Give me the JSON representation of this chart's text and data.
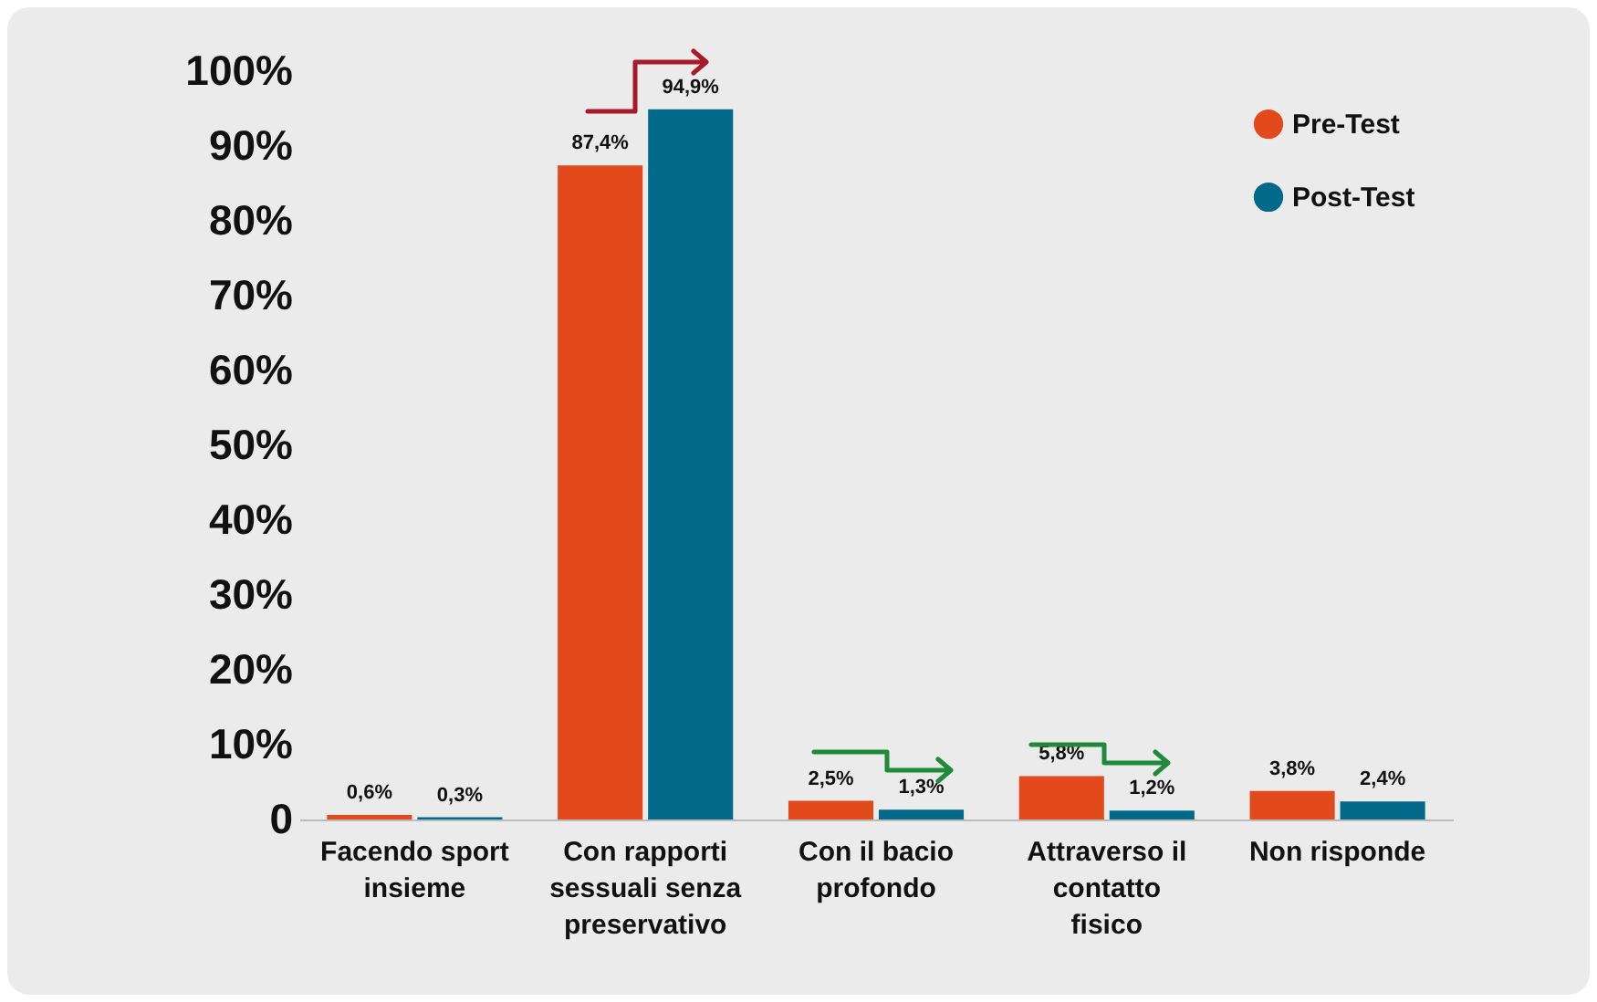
{
  "chart_data": {
    "type": "bar",
    "categories": [
      "Facendo sport insieme",
      "Con rapporti sessuali senza preservativo",
      "Con il bacio profondo",
      "Attraverso il contatto fisico",
      "Non risponde"
    ],
    "series": [
      {
        "name": "Pre-Test",
        "color": "#e2491b",
        "values": [
          0.6,
          87.4,
          2.5,
          5.8,
          3.8
        ],
        "value_labels": [
          "0,6%",
          "87,4%",
          "2,5%",
          "5,8%",
          "3,8%"
        ]
      },
      {
        "name": "Post-Test",
        "color": "#03698a",
        "values": [
          0.3,
          94.9,
          1.3,
          1.2,
          2.4
        ],
        "value_labels": [
          "0,3%",
          "94,9%",
          "1,3%",
          "1,2%",
          "2,4%"
        ]
      }
    ],
    "ylim": [
      0,
      100
    ],
    "yticks": [
      0,
      {
        "value": 10,
        "label": "10%"
      },
      {
        "value": 20,
        "label": "20%"
      },
      {
        "value": 30,
        "label": "30%"
      },
      {
        "value": 40,
        "label": "40%"
      },
      {
        "value": 50,
        "label": "50%"
      },
      {
        "value": 60,
        "label": "60%"
      },
      {
        "value": 70,
        "label": "70%"
      },
      {
        "value": 80,
        "label": "80%"
      },
      {
        "value": 90,
        "label": "90%"
      },
      {
        "value": 100,
        "label": "100%"
      }
    ],
    "grid": false,
    "legend": "top right"
  }
}
